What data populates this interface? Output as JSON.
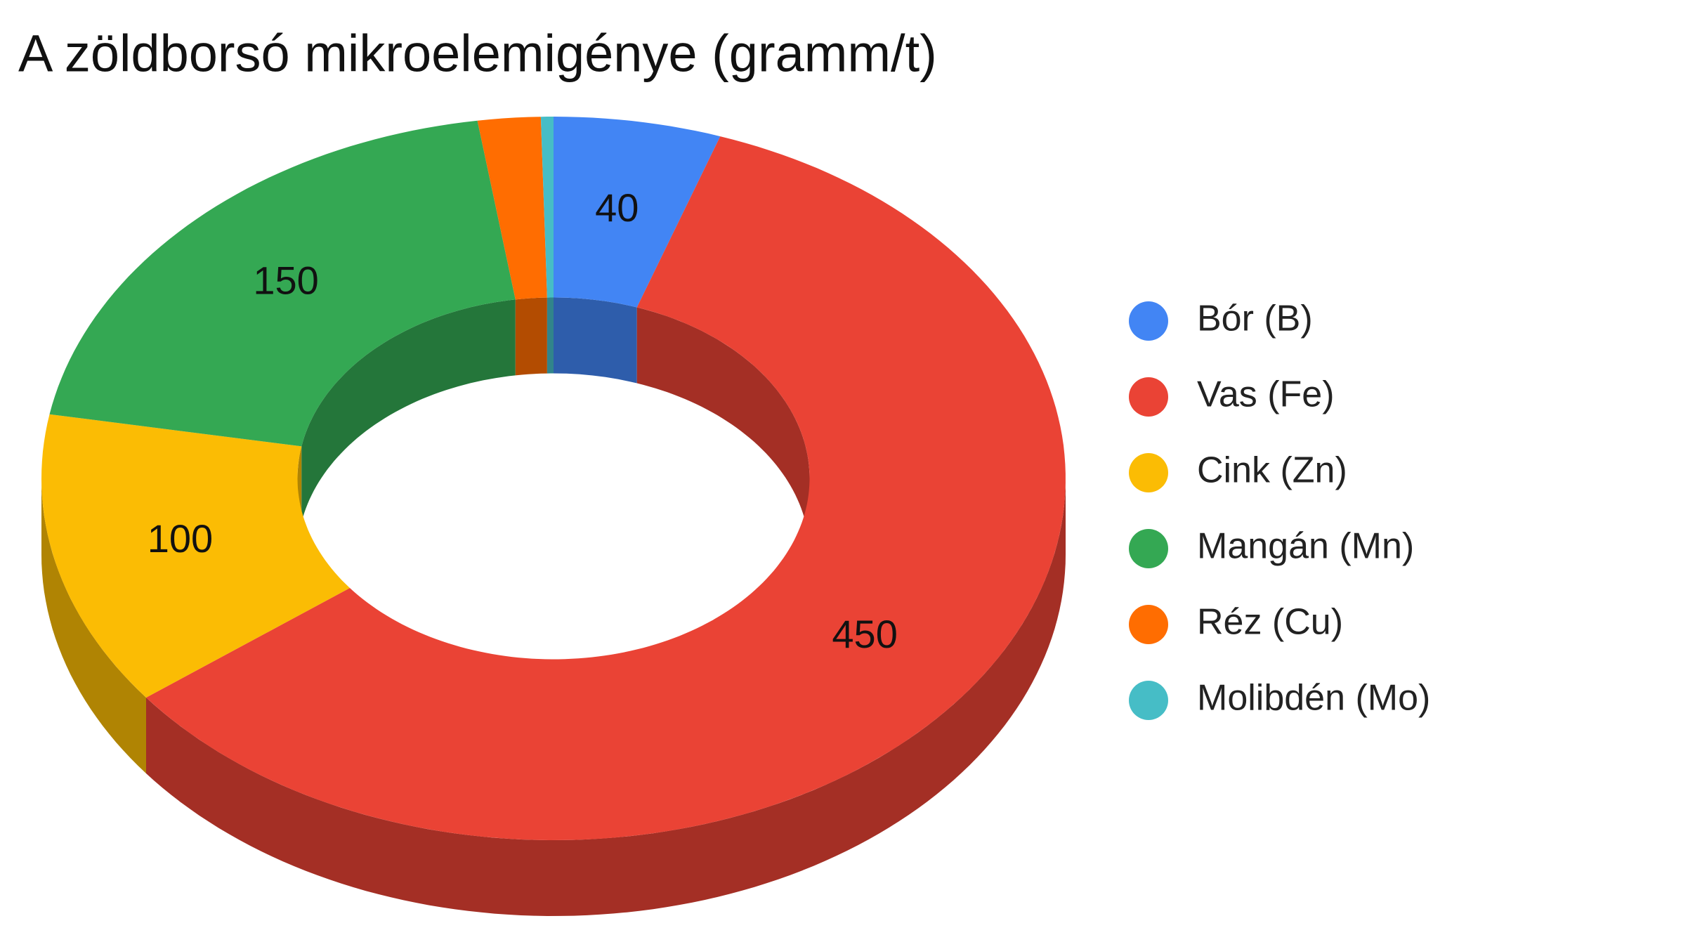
{
  "chart_data": {
    "type": "donut3d",
    "title": "A zöldborsó mikroelemigénye (gramm/t)",
    "categories": [
      "Bór (B)",
      "Vas (Fe)",
      "Cink (Zn)",
      "Mangán (Mn)",
      "Réz (Cu)",
      "Molibdén (Mo)"
    ],
    "values": [
      40,
      450,
      100,
      150,
      15,
      3
    ],
    "colors": [
      "#4285f4",
      "#ea4335",
      "#fbbc04",
      "#34a853",
      "#ff6d01",
      "#46bdc6"
    ],
    "legend": "right"
  }
}
